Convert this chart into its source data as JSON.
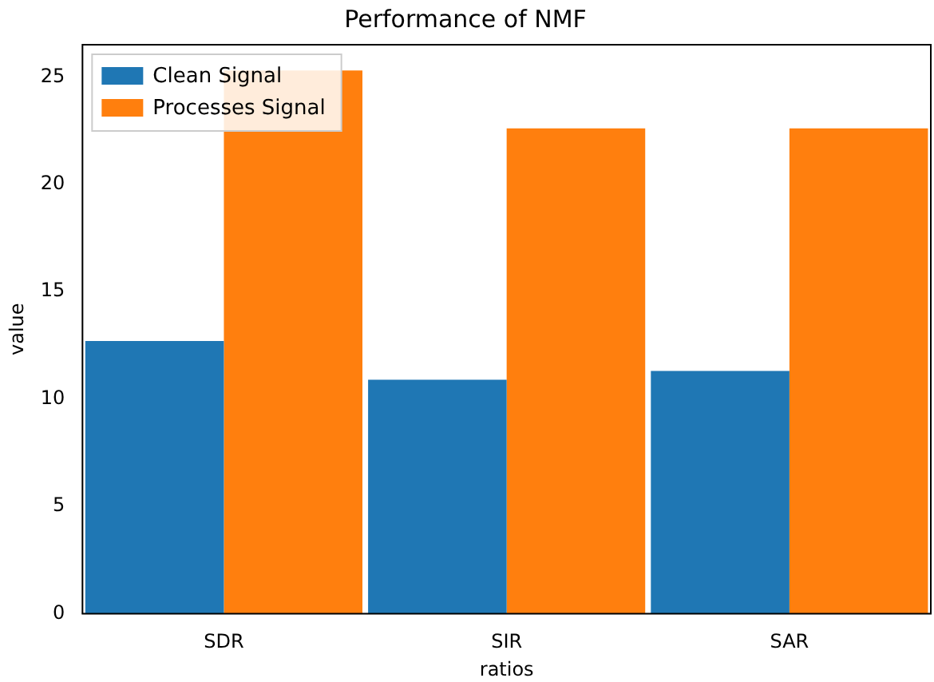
{
  "chart_data": {
    "type": "bar",
    "title": "Performance of NMF",
    "xlabel": "ratios",
    "ylabel": "value",
    "categories": [
      "SDR",
      "SIR",
      "SAR"
    ],
    "series": [
      {
        "name": "Clean Signal",
        "color": "#1f77b4",
        "values": [
          12.7,
          10.9,
          11.3
        ]
      },
      {
        "name": "Processes Signal",
        "color": "#ff7f0e",
        "values": [
          25.3,
          22.6,
          22.6
        ]
      }
    ],
    "ylim": [
      0,
      26.5
    ],
    "yticks": [
      0,
      5,
      10,
      15,
      20,
      25
    ],
    "grid": false,
    "legend": "top left"
  }
}
